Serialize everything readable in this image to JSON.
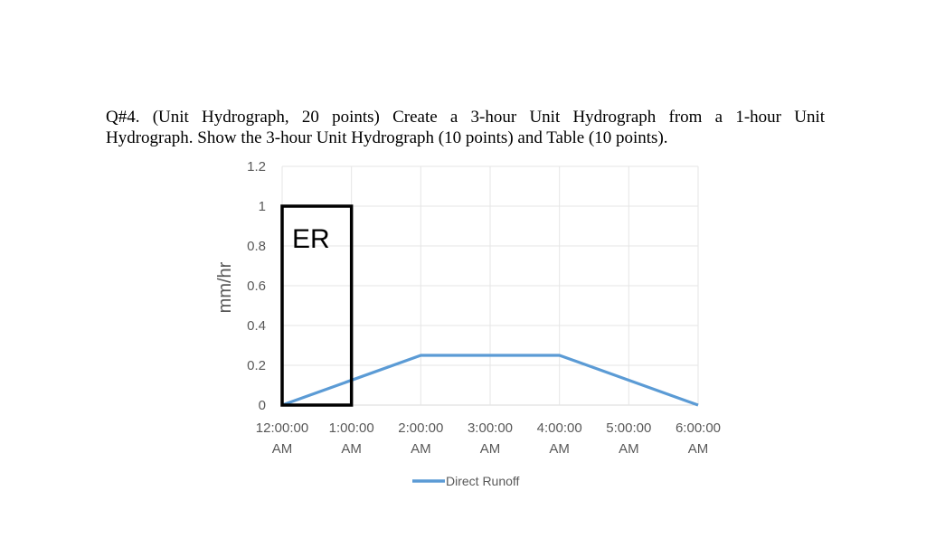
{
  "question": {
    "line1": "Q#4. (Unit Hydrograph, 20 points) Create a 3-hour Unit Hydrograph from a 1-hour Unit",
    "line2": "Hydrograph. Show the 3-hour Unit Hydrograph (10 points) and Table (10 points)."
  },
  "chart_data": {
    "type": "line",
    "title": "",
    "xlabel": "",
    "ylabel": "mm/hr",
    "ylim": [
      0,
      1.2
    ],
    "y_ticks": [
      "0",
      "0.2",
      "0.4",
      "0.6",
      "0.8",
      "1",
      "1.2"
    ],
    "x_tick_labels": [
      [
        "12:00:00",
        "AM"
      ],
      [
        "1:00:00",
        "AM"
      ],
      [
        "2:00:00",
        "AM"
      ],
      [
        "3:00:00",
        "AM"
      ],
      [
        "4:00:00",
        "AM"
      ],
      [
        "5:00:00",
        "AM"
      ],
      [
        "6:00:00",
        "AM"
      ]
    ],
    "x_hours": [
      0,
      1,
      2,
      3,
      4,
      5,
      6
    ],
    "grid": true,
    "legend_position": "bottom",
    "series": [
      {
        "name": "Direct Runoff",
        "color": "#5b9bd5",
        "x": [
          0,
          2,
          4,
          6
        ],
        "y": [
          0,
          0.25,
          0.25,
          0
        ]
      }
    ],
    "annotations": [
      {
        "label": "ER",
        "x_start": 0,
        "x_end": 1,
        "y_value": 1.0,
        "color": "#000000"
      }
    ]
  }
}
